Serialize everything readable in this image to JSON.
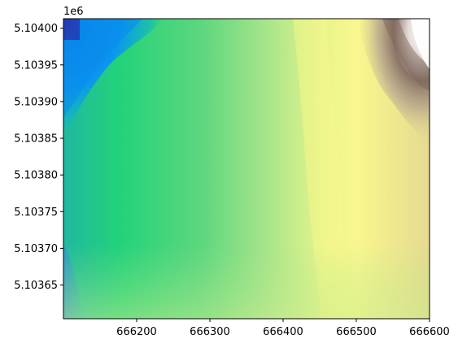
{
  "chart_data": {
    "type": "heatmap",
    "title": "",
    "xlabel": "",
    "ylabel": "",
    "colormap": "terrain",
    "y_offset_label": "1e6",
    "xlim": [
      666100,
      666600
    ],
    "ylim": [
      5103604,
      5104013
    ],
    "x_ticks": [
      666200,
      666300,
      666400,
      666500,
      666600
    ],
    "x_tick_labels": [
      "666200",
      "666300",
      "666400",
      "666500",
      "666600"
    ],
    "y_ticks": [
      5103650,
      5103700,
      5103750,
      5103800,
      5103850,
      5103900,
      5103950,
      5104000
    ],
    "y_tick_labels": [
      "5.10365",
      "5.10370",
      "5.10375",
      "5.10380",
      "5.10385",
      "5.10390",
      "5.10395",
      "5.10400"
    ],
    "grid": false,
    "colorbar": false,
    "colors": {
      "deep_blue": "#1a4fc4",
      "light_blue": "#0a95ee",
      "green": "#14d66e",
      "light_green": "#7ee08a",
      "yellow": "#f5f58c",
      "tan": "#e2d490",
      "brown": "#8a7266",
      "white": "#ffffff"
    }
  }
}
